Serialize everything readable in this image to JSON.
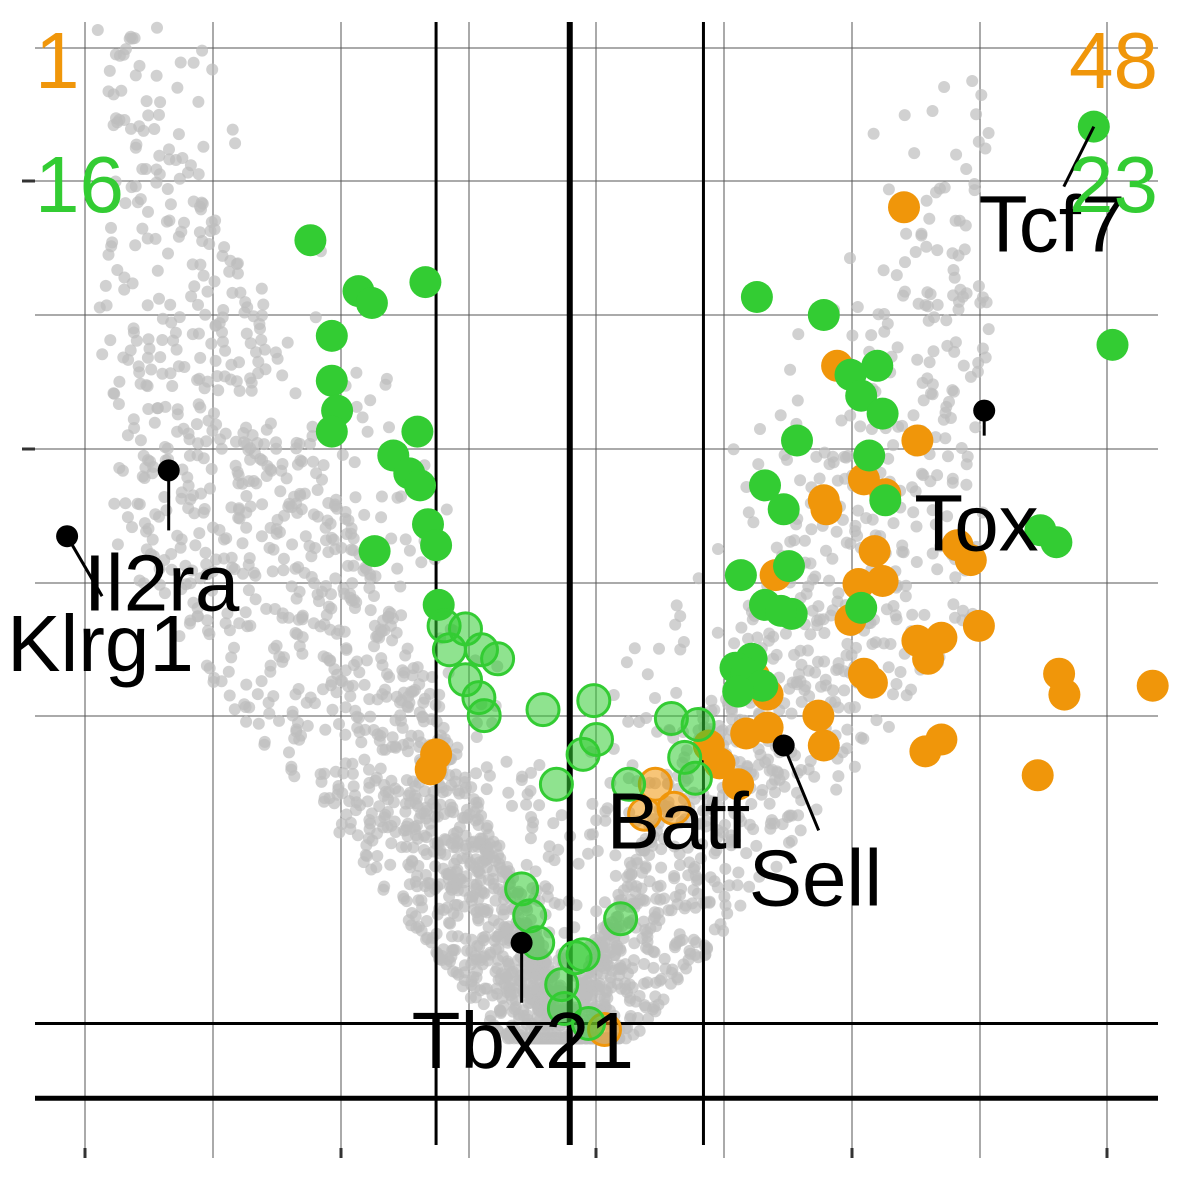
{
  "chart_data": {
    "type": "scatter",
    "title": "",
    "xlabel": "",
    "ylabel": "",
    "xlim": [
      -2.0,
      2.2
    ],
    "ylim": [
      -0.2,
      3.6
    ],
    "grid": true,
    "colors": {
      "background_points": "#bdbdbd",
      "up_highlight": "#f0960a",
      "green_highlight": "#33cc33",
      "labeled_gene_point": "#000000",
      "reference_lines": "#000000"
    },
    "counts": {
      "top_left_orange": "1",
      "top_left_green": "16",
      "top_right_orange": "48",
      "top_right_green": "23"
    },
    "reference_lines": {
      "vertical": [
        -0.5,
        0.0,
        0.5
      ],
      "horizontal": [
        0.0,
        0.25
      ]
    },
    "background": {
      "description_free": true,
      "count": 2600
    },
    "series": [
      {
        "color_key": "up_highlight",
        "points": [
          [
            1.25,
            2.98
          ],
          [
            1.0,
            2.45
          ],
          [
            1.3,
            2.2
          ],
          [
            1.1,
            2.07
          ],
          [
            0.95,
            2.0
          ],
          [
            1.18,
            2.02
          ],
          [
            0.96,
            1.97
          ],
          [
            1.45,
            1.85
          ],
          [
            1.5,
            1.8
          ],
          [
            1.14,
            1.83
          ],
          [
            1.08,
            1.72
          ],
          [
            0.77,
            1.75
          ],
          [
            1.17,
            1.73
          ],
          [
            1.05,
            1.6
          ],
          [
            1.3,
            1.53
          ],
          [
            1.53,
            1.58
          ],
          [
            1.39,
            1.54
          ],
          [
            1.13,
            1.39
          ],
          [
            1.34,
            1.47
          ],
          [
            1.1,
            1.42
          ],
          [
            1.83,
            1.42
          ],
          [
            1.85,
            1.35
          ],
          [
            2.18,
            1.38
          ],
          [
            0.69,
            1.41
          ],
          [
            0.74,
            1.35
          ],
          [
            0.74,
            1.24
          ],
          [
            0.66,
            1.22
          ],
          [
            0.95,
            1.18
          ],
          [
            1.39,
            1.2
          ],
          [
            1.33,
            1.16
          ],
          [
            1.75,
            1.08
          ],
          [
            0.63,
            1.05
          ],
          [
            0.93,
            1.28
          ],
          [
            0.52,
            1.18
          ],
          [
            0.56,
            1.12
          ],
          [
            -0.5,
            1.15
          ],
          [
            0.32,
            1.05
          ],
          [
            0.39,
            0.97
          ],
          [
            0.13,
            0.23
          ],
          [
            0.28,
            0.95
          ],
          [
            -0.52,
            1.1
          ]
        ]
      },
      {
        "color_key": "green_highlight",
        "points": [
          [
            1.96,
            3.25
          ],
          [
            -0.97,
            2.87
          ],
          [
            -0.54,
            2.73
          ],
          [
            -0.79,
            2.7
          ],
          [
            -0.74,
            2.66
          ],
          [
            -0.89,
            2.55
          ],
          [
            -0.89,
            2.4
          ],
          [
            -0.87,
            2.3
          ],
          [
            -0.89,
            2.23
          ],
          [
            -0.57,
            2.23
          ],
          [
            -0.66,
            2.15
          ],
          [
            -0.6,
            2.09
          ],
          [
            -0.56,
            2.05
          ],
          [
            -0.53,
            1.92
          ],
          [
            -0.5,
            1.85
          ],
          [
            -0.73,
            1.83
          ],
          [
            -0.49,
            1.65
          ],
          [
            -0.45,
            1.5
          ],
          [
            0.7,
            2.68
          ],
          [
            0.95,
            2.62
          ],
          [
            1.15,
            2.45
          ],
          [
            1.05,
            2.42
          ],
          [
            2.03,
            2.52
          ],
          [
            1.09,
            2.35
          ],
          [
            1.17,
            2.29
          ],
          [
            0.85,
            2.2
          ],
          [
            1.12,
            2.15
          ],
          [
            0.73,
            2.05
          ],
          [
            0.8,
            1.97
          ],
          [
            1.18,
            2.0
          ],
          [
            1.76,
            1.9
          ],
          [
            1.82,
            1.86
          ],
          [
            0.82,
            1.78
          ],
          [
            0.64,
            1.75
          ],
          [
            0.73,
            1.65
          ],
          [
            0.83,
            1.62
          ],
          [
            1.09,
            1.64
          ],
          [
            0.79,
            1.63
          ],
          [
            0.68,
            1.47
          ],
          [
            0.62,
            1.44
          ],
          [
            0.66,
            1.42
          ],
          [
            0.72,
            1.38
          ],
          [
            0.63,
            1.36
          ],
          [
            -0.1,
            1.3
          ],
          [
            0.09,
            1.33
          ],
          [
            0.1,
            1.2
          ],
          [
            0.05,
            1.15
          ],
          [
            -0.05,
            1.05
          ],
          [
            0.22,
            1.05
          ],
          [
            -0.39,
            1.57
          ],
          [
            -0.33,
            1.5
          ],
          [
            -0.39,
            1.4
          ],
          [
            -0.34,
            1.34
          ],
          [
            -0.32,
            1.28
          ],
          [
            -0.18,
            0.7
          ],
          [
            -0.15,
            0.61
          ],
          [
            -0.12,
            0.52
          ],
          [
            0.05,
            0.48
          ],
          [
            0.02,
            0.47
          ],
          [
            0.19,
            0.6
          ],
          [
            -0.03,
            0.38
          ],
          [
            -0.02,
            0.3
          ],
          [
            0.07,
            0.25
          ],
          [
            -0.47,
            1.58
          ],
          [
            -0.27,
            1.47
          ],
          [
            0.38,
            1.27
          ],
          [
            0.48,
            1.25
          ],
          [
            0.47,
            1.07
          ],
          [
            0.43,
            1.14
          ]
        ]
      },
      {
        "color_key": "labeled_gene_point",
        "points": [
          [
            -1.88,
            1.88
          ],
          [
            -1.5,
            2.1
          ],
          [
            0.8,
            1.18
          ],
          [
            1.55,
            2.3
          ],
          [
            -0.18,
            0.52
          ]
        ]
      }
    ],
    "annotations": [
      {
        "label": "Tcf7",
        "x": 1.96,
        "y": 3.25
      },
      {
        "label": "Tox",
        "x": 1.55,
        "y": 2.3
      },
      {
        "label": "Il2ra",
        "x": -1.5,
        "y": 2.1
      },
      {
        "label": "Klrg1",
        "x": -1.88,
        "y": 1.88
      },
      {
        "label": "Batf",
        "x": 0.25,
        "y": 1.02
      },
      {
        "label": "Sell",
        "x": 0.8,
        "y": 1.18
      },
      {
        "label": "Tbx21",
        "x": -0.18,
        "y": 0.52
      }
    ]
  }
}
